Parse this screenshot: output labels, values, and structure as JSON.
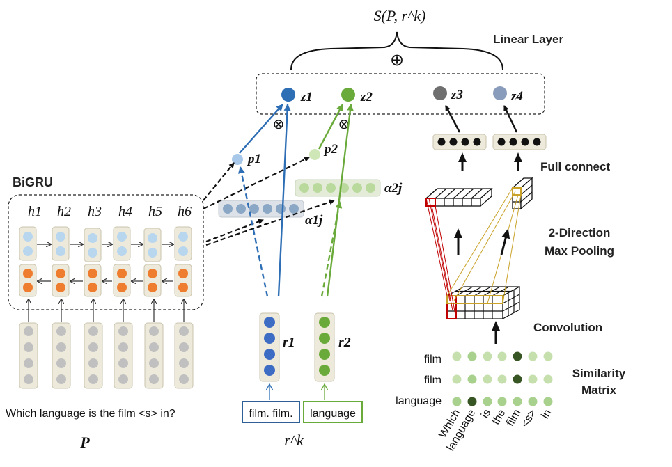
{
  "score_label": "S(P, r^k)",
  "linear_layer_label": "Linear Layer",
  "oplus": "⊕",
  "otimes": "⊗",
  "z_labels": [
    "z1",
    "z2",
    "z3",
    "z4"
  ],
  "bigru_label": "BiGRU",
  "hidden_labels": [
    "h1",
    "h2",
    "h3",
    "h4",
    "h5",
    "h6"
  ],
  "p_labels": [
    "p1",
    "p2"
  ],
  "alpha_labels": [
    "α1j",
    "α2j"
  ],
  "r_labels": [
    "r1",
    "r2"
  ],
  "question": "Which language is the film <s> in?",
  "p_symbol": "P",
  "rk_symbol": "r^k",
  "relation_box_1": "film. film.",
  "relation_box_2": "language",
  "full_connect_label": "Full connect",
  "pooling_label_1": "2-Direction",
  "pooling_label_2": "Max Pooling",
  "convolution_label": "Convolution",
  "similarity_label_1": "Similarity",
  "similarity_label_2": "Matrix",
  "matrix_rows": [
    "film",
    "film",
    "language"
  ],
  "matrix_cols": [
    "Which",
    "language",
    "is",
    "the",
    "film",
    "<s>",
    "in"
  ],
  "colors": {
    "blue": "#2e6eb5",
    "green": "#6aaa3a",
    "gray_dark": "#6f6f6f",
    "blue_gray": "#8a9cbb",
    "orange": "#ee7d30",
    "light_blue": "#b9d6ef",
    "cell_bg": "#eeeadb",
    "red": "#c00000",
    "gold": "#c9a227"
  }
}
